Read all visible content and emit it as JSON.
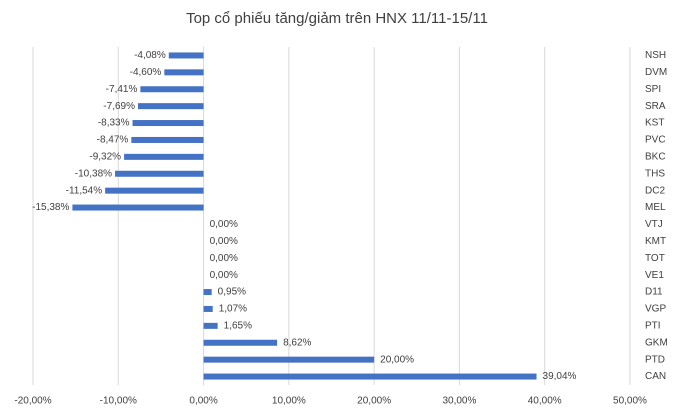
{
  "chart_data": {
    "type": "bar",
    "orientation": "horizontal",
    "title": "Top cổ phiếu tăng/giảm trên HNX 11/11-15/11",
    "categories": [
      "NSH",
      "DVM",
      "SPI",
      "SRA",
      "KST",
      "PVC",
      "BKC",
      "THS",
      "DC2",
      "MEL",
      "VTJ",
      "KMT",
      "TOT",
      "VE1",
      "D11",
      "VGP",
      "PTI",
      "GKM",
      "PTD",
      "CAN"
    ],
    "values": [
      -4.08,
      -4.6,
      -7.41,
      -7.69,
      -8.33,
      -8.47,
      -9.32,
      -10.38,
      -11.54,
      -15.38,
      0,
      0,
      0,
      0,
      0.95,
      1.07,
      1.65,
      8.62,
      20.0,
      39.04
    ],
    "value_labels": [
      "-4,08%",
      "-4,60%",
      "-7,41%",
      "-7,69%",
      "-8,33%",
      "-8,47%",
      "-9,32%",
      "-10,38%",
      "-11,54%",
      "-15,38%",
      "0,00%",
      "0,00%",
      "0,00%",
      "0,00%",
      "0,95%",
      "1,07%",
      "1,65%",
      "8,62%",
      "20,00%",
      "39,04%"
    ],
    "color": "#4472c4",
    "xlim": [
      -20,
      50
    ],
    "xticks": [
      {
        "value": -20,
        "label": "-20,00%"
      },
      {
        "value": -10,
        "label": "-10,00%"
      },
      {
        "value": 0,
        "label": "0,00%"
      },
      {
        "value": 10,
        "label": "10,00%"
      },
      {
        "value": 20,
        "label": "20,00%"
      },
      {
        "value": 30,
        "label": "30,00%"
      },
      {
        "value": 40,
        "label": "40,00%"
      },
      {
        "value": 50,
        "label": "50,00%"
      }
    ],
    "grid": true
  }
}
